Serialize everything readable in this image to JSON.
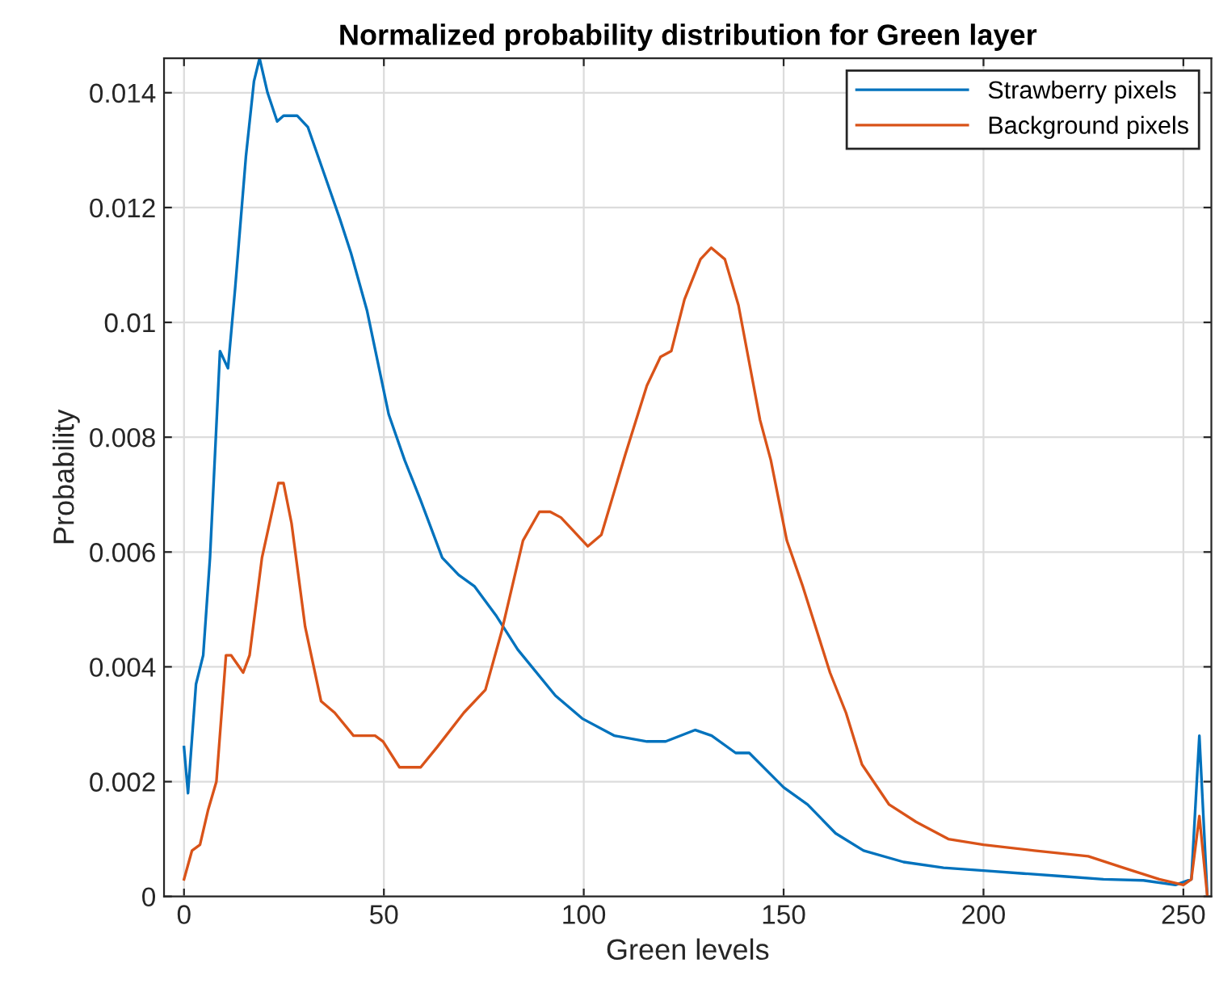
{
  "chart_data": {
    "type": "line",
    "title": "Normalized probability distribution for Green layer",
    "xlabel": "Green levels",
    "ylabel": "Probability",
    "xlim": [
      -5,
      257
    ],
    "xticks": [
      0,
      50,
      100,
      150,
      200,
      250
    ],
    "ylim": [
      0,
      0.0146
    ],
    "yticks": [
      0,
      0.002,
      0.004,
      0.006,
      0.008,
      0.01,
      0.012,
      0.014
    ],
    "grid": true,
    "legend": "top right",
    "line_style": "solid",
    "series": [
      {
        "name": "Strawberry pixels",
        "color": "#0072bd",
        "x": [
          0,
          1,
          3,
          4.8,
          6.5,
          8.1,
          9,
          11,
          12.8,
          15.5,
          17.5,
          18.9,
          20.9,
          23.3,
          24.9,
          28.3,
          31,
          35,
          39,
          41.8,
          45.8,
          51.2,
          55.2,
          59.2,
          64.6,
          68.7,
          72.7,
          78,
          83.5,
          92.9,
          99.6,
          107.7,
          115.8,
          120.5,
          127.9,
          132,
          138,
          141.4,
          150,
          156,
          163,
          170,
          180,
          190,
          200,
          210,
          220,
          230,
          240,
          248,
          252,
          254,
          256
        ],
        "values": [
          0.0026,
          0.0018,
          0.0037,
          0.0042,
          0.0059,
          0.0082,
          0.0095,
          0.0092,
          0.0106,
          0.0129,
          0.0142,
          0.0146,
          0.014,
          0.0135,
          0.0136,
          0.0136,
          0.0134,
          0.0126,
          0.0118,
          0.0112,
          0.0102,
          0.0084,
          0.0076,
          0.0069,
          0.0059,
          0.0056,
          0.0054,
          0.0049,
          0.0043,
          0.0035,
          0.0031,
          0.0028,
          0.0027,
          0.0027,
          0.0029,
          0.0028,
          0.0025,
          0.0025,
          0.0019,
          0.0016,
          0.0011,
          0.0008,
          0.0006,
          0.0005,
          0.00045,
          0.0004,
          0.00035,
          0.0003,
          0.00028,
          0.0002,
          0.0003,
          0.0028,
          0
        ]
      },
      {
        "name": "Background pixels",
        "color": "#d95319",
        "x": [
          0,
          2,
          4,
          6,
          8.1,
          10.5,
          11.8,
          14.8,
          16.4,
          19.5,
          23.6,
          24.9,
          26.9,
          30.3,
          34.3,
          37.7,
          42.4,
          47.8,
          49.8,
          53.9,
          59.2,
          63.3,
          70,
          75.4,
          79.4,
          84.8,
          88.9,
          91.6,
          94.3,
          97,
          101,
          104.4,
          110.4,
          115.8,
          119.2,
          121.9,
          125.2,
          129.2,
          131.9,
          135.3,
          138.7,
          144.1,
          146.8,
          150.8,
          154.8,
          161.6,
          165.6,
          169.6,
          176.4,
          183.1,
          191.2,
          200,
          212.7,
          226.2,
          235,
          244,
          250,
          252,
          254,
          256
        ],
        "values": [
          0.0003,
          0.0008,
          0.0009,
          0.0015,
          0.002,
          0.0042,
          0.0042,
          0.0039,
          0.0042,
          0.0059,
          0.0072,
          0.0072,
          0.0065,
          0.0047,
          0.0034,
          0.0032,
          0.0028,
          0.0028,
          0.0027,
          0.00225,
          0.00225,
          0.0026,
          0.0032,
          0.0036,
          0.0046,
          0.0062,
          0.0067,
          0.0067,
          0.0066,
          0.0064,
          0.0061,
          0.0063,
          0.0077,
          0.0089,
          0.0094,
          0.0095,
          0.0104,
          0.0111,
          0.0113,
          0.0111,
          0.0103,
          0.0083,
          0.0076,
          0.0062,
          0.0054,
          0.0039,
          0.0032,
          0.0023,
          0.0016,
          0.0013,
          0.001,
          0.0009,
          0.0008,
          0.0007,
          0.0005,
          0.0003,
          0.0002,
          0.0003,
          0.0014,
          0
        ]
      }
    ]
  }
}
